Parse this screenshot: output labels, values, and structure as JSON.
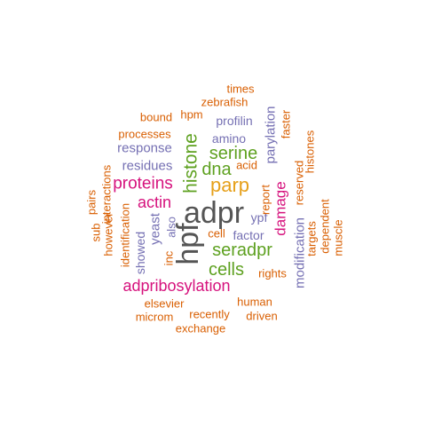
{
  "words": [
    {
      "text": "adpr",
      "color": "#555555"
    },
    {
      "text": "hpf",
      "color": "#555555"
    },
    {
      "text": "parp",
      "color": "#e6a01a"
    },
    {
      "text": "histone",
      "color": "#5ea120"
    },
    {
      "text": "serine",
      "color": "#5ea120"
    },
    {
      "text": "dna",
      "color": "#5ea120"
    },
    {
      "text": "seradpr",
      "color": "#5ea120"
    },
    {
      "text": "cells",
      "color": "#5ea120"
    },
    {
      "text": "proteins",
      "color": "#d6127d"
    },
    {
      "text": "actin",
      "color": "#d6127d"
    },
    {
      "text": "damage",
      "color": "#d6127d"
    },
    {
      "text": "adpribosylation",
      "color": "#d6127d"
    },
    {
      "text": "residues",
      "color": "#7570b3"
    },
    {
      "text": "response",
      "color": "#7570b3"
    },
    {
      "text": "amino",
      "color": "#7570b3"
    },
    {
      "text": "profilin",
      "color": "#7570b3"
    },
    {
      "text": "parylation",
      "color": "#7570b3"
    },
    {
      "text": "yeast",
      "color": "#7570b3"
    },
    {
      "text": "also",
      "color": "#7570b3"
    },
    {
      "text": "factor",
      "color": "#7570b3"
    },
    {
      "text": "ypf",
      "color": "#7570b3"
    },
    {
      "text": "modification",
      "color": "#7570b3"
    },
    {
      "text": "showed",
      "color": "#7570b3"
    },
    {
      "text": "times",
      "color": "#d95f02"
    },
    {
      "text": "zebrafish",
      "color": "#d95f02"
    },
    {
      "text": "hpm",
      "color": "#d95f02"
    },
    {
      "text": "bound",
      "color": "#d95f02"
    },
    {
      "text": "processes",
      "color": "#d95f02"
    },
    {
      "text": "interactions",
      "color": "#d95f02"
    },
    {
      "text": "pairs",
      "color": "#d95f02"
    },
    {
      "text": "however",
      "color": "#d95f02"
    },
    {
      "text": "sub",
      "color": "#d95f02"
    },
    {
      "text": "identification",
      "color": "#d95f02"
    },
    {
      "text": "inc",
      "color": "#d95f02"
    },
    {
      "text": "cell",
      "color": "#d95f02"
    },
    {
      "text": "acid",
      "color": "#d95f02"
    },
    {
      "text": "report",
      "color": "#d95f02"
    },
    {
      "text": "faster",
      "color": "#d95f02"
    },
    {
      "text": "histones",
      "color": "#d95f02"
    },
    {
      "text": "reserved",
      "color": "#d95f02"
    },
    {
      "text": "targets",
      "color": "#d95f02"
    },
    {
      "text": "dependent",
      "color": "#d95f02"
    },
    {
      "text": "muscle",
      "color": "#d95f02"
    },
    {
      "text": "rights",
      "color": "#d95f02"
    },
    {
      "text": "human",
      "color": "#d95f02"
    },
    {
      "text": "elsevier",
      "color": "#d95f02"
    },
    {
      "text": "recently",
      "color": "#d95f02"
    },
    {
      "text": "microm",
      "color": "#d95f02"
    },
    {
      "text": "driven",
      "color": "#d95f02"
    },
    {
      "text": "exchange",
      "color": "#d95f02"
    }
  ]
}
